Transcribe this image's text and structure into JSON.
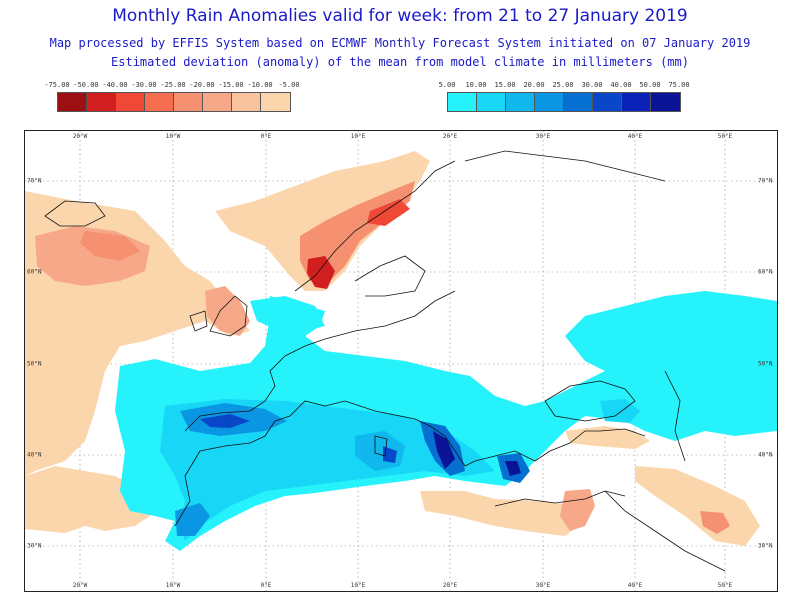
{
  "title": "Monthly Rain Anomalies valid for week: from 21 to 27 January 2019",
  "subtitle_1": "Map processed by EFFIS System based on ECMWF Monthly Forecast System initiated on 07 January 2019",
  "subtitle_2": "Estimated deviation (anomaly) of the mean from model climate in millimeters (mm)",
  "legend_negative": {
    "labels": [
      "-75.00",
      "-50.00",
      "-40.00",
      "-30.00",
      "-25.00",
      "-20.00",
      "-15.00",
      "-10.00",
      "-5.00"
    ],
    "colors": [
      "#9c0f12",
      "#d11f1f",
      "#ef4836",
      "#f56e50",
      "#f59070",
      "#f6a888",
      "#f8c29e",
      "#fbd6ad"
    ]
  },
  "legend_positive": {
    "labels": [
      "5.00",
      "10.00",
      "15.00",
      "20.00",
      "25.00",
      "30.00",
      "40.00",
      "50.00",
      "75.00"
    ],
    "colors": [
      "#25f2fb",
      "#17d6f6",
      "#10b8ee",
      "#0a96e2",
      "#0570d2",
      "#0848c8",
      "#0a22b8",
      "#0a1296"
    ]
  },
  "map": {
    "longitude_labels": [
      "20°W",
      "10°W",
      "0°E",
      "10°E",
      "20°E",
      "30°E",
      "40°E",
      "50°E"
    ],
    "latitude_labels": [
      "70°N",
      "60°N",
      "50°N",
      "40°N",
      "30°N"
    ]
  }
}
